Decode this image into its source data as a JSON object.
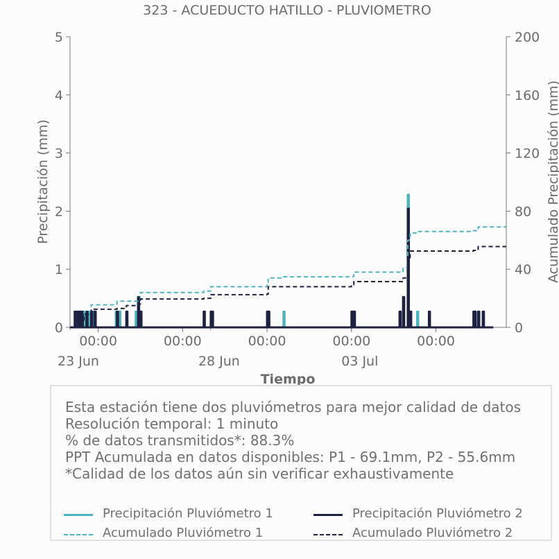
{
  "chart_data": {
    "type": "line",
    "title": "323 - ACUEDUCTO HATILLO - PLUVIOMETRO",
    "xlabel": "Tiempo",
    "ylabel": "Precipitación (mm)",
    "y2label": "Acumulado Precipitación (mm)",
    "x_range": [
      "2024-06-22T00:00",
      "2024-07-07T12:00"
    ],
    "x_major_ticks": [
      {
        "t": "2024-06-23T00:00",
        "time": "00:00",
        "date": "23 Jun"
      },
      {
        "t": "2024-06-26T00:00",
        "time": "00:00",
        "date": ""
      },
      {
        "t": "2024-06-29T00:00",
        "time": "00:00",
        "date": ""
      },
      {
        "t": "2024-07-02T00:00",
        "time": "00:00",
        "date": ""
      },
      {
        "t": "2024-07-05T00:00",
        "time": "00:00",
        "date": ""
      }
    ],
    "x_date_labels": [
      {
        "t": "2024-06-22T00:00",
        "label": "23 Jun"
      },
      {
        "t": "2024-06-27T00:00",
        "label": "28 Jun"
      },
      {
        "t": "2024-07-02T00:00",
        "label": "03 Jul"
      }
    ],
    "x_minor_ticks": [
      "2024-06-22T00:00",
      "2024-06-27T00:00",
      "2024-07-02T00:00"
    ],
    "ylim": [
      0,
      5
    ],
    "yticks": [
      0,
      1,
      2,
      3,
      4,
      5
    ],
    "y2lim": [
      0,
      200
    ],
    "y2ticks": [
      0,
      40,
      80,
      120,
      160,
      200
    ],
    "grid": false,
    "series": [
      {
        "name": "Precipitación Pluviómetro 1",
        "color": "#4fb3bf",
        "style": "solid",
        "axis": "left",
        "points": [
          [
            "2024-06-22T00:00",
            0
          ],
          [
            "2024-06-22T04:00",
            0.27
          ],
          [
            "2024-06-22T06:00",
            0.27
          ],
          [
            "2024-06-22T08:00",
            0.27
          ],
          [
            "2024-06-22T10:00",
            0.27
          ],
          [
            "2024-06-22T12:00",
            0.27
          ],
          [
            "2024-06-22T16:00",
            0.27
          ],
          [
            "2024-06-22T20:00",
            0.27
          ],
          [
            "2024-06-22T21:00",
            0.27
          ],
          [
            "2024-06-23T00:00",
            0
          ],
          [
            "2024-06-23T15:00",
            0.27
          ],
          [
            "2024-06-23T16:00",
            0.27
          ],
          [
            "2024-06-23T18:00",
            0.27
          ],
          [
            "2024-06-24T00:00",
            0.27
          ],
          [
            "2024-06-24T08:00",
            0.27
          ],
          [
            "2024-06-24T10:00",
            0.52
          ],
          [
            "2024-06-24T11:00",
            0.27
          ],
          [
            "2024-06-24T12:00",
            0.27
          ],
          [
            "2024-06-24T14:00",
            0
          ],
          [
            "2024-06-26T18:00",
            0.27
          ],
          [
            "2024-06-27T00:00",
            0.27
          ],
          [
            "2024-06-27T01:00",
            0.27
          ],
          [
            "2024-06-29T00:00",
            0.27
          ],
          [
            "2024-06-29T01:00",
            0.27
          ],
          [
            "2024-06-29T14:00",
            0.27
          ],
          [
            "2024-07-02T00:00",
            0.27
          ],
          [
            "2024-07-02T01:00",
            0.27
          ],
          [
            "2024-07-02T02:00",
            0.27
          ],
          [
            "2024-07-03T17:00",
            0.27
          ],
          [
            "2024-07-03T20:00",
            0.52
          ],
          [
            "2024-07-04T00:00",
            2.28
          ],
          [
            "2024-07-04T01:00",
            0.27
          ],
          [
            "2024-07-04T02:00",
            0.27
          ],
          [
            "2024-07-04T08:00",
            0.27
          ],
          [
            "2024-07-06T08:00",
            0.27
          ],
          [
            "2024-07-06T09:00",
            0.27
          ],
          [
            "2024-07-06T12:00",
            0.27
          ],
          [
            "2024-07-06T16:00",
            0.27
          ],
          [
            "2024-07-07T00:00",
            0
          ]
        ]
      },
      {
        "name": "Precipitación Pluviómetro 2",
        "color": "#1e2140",
        "style": "solid",
        "axis": "left",
        "points": [
          [
            "2024-06-22T00:00",
            0
          ],
          [
            "2024-06-22T04:00",
            0.27
          ],
          [
            "2024-06-22T06:00",
            0.27
          ],
          [
            "2024-06-22T08:00",
            0.27
          ],
          [
            "2024-06-22T10:00",
            0.27
          ],
          [
            "2024-06-22T14:00",
            0.27
          ],
          [
            "2024-06-22T18:00",
            0.27
          ],
          [
            "2024-06-22T21:00",
            0.27
          ],
          [
            "2024-06-23T00:00",
            0
          ],
          [
            "2024-06-23T16:00",
            0.27
          ],
          [
            "2024-06-24T00:00",
            0.27
          ],
          [
            "2024-06-24T10:00",
            0.52
          ],
          [
            "2024-06-24T11:00",
            0.27
          ],
          [
            "2024-06-24T12:00",
            0.27
          ],
          [
            "2024-06-24T14:00",
            0
          ],
          [
            "2024-06-26T18:00",
            0.27
          ],
          [
            "2024-06-27T00:00",
            0.27
          ],
          [
            "2024-06-27T01:00",
            0.27
          ],
          [
            "2024-06-29T00:00",
            0.27
          ],
          [
            "2024-06-29T01:00",
            0.27
          ],
          [
            "2024-07-02T00:00",
            0.27
          ],
          [
            "2024-07-02T01:00",
            0.27
          ],
          [
            "2024-07-02T02:00",
            0.27
          ],
          [
            "2024-07-03T17:00",
            0.27
          ],
          [
            "2024-07-03T20:00",
            0.52
          ],
          [
            "2024-07-04T00:00",
            2.04
          ],
          [
            "2024-07-04T01:00",
            0.27
          ],
          [
            "2024-07-04T02:00",
            0.27
          ],
          [
            "2024-07-04T18:00",
            0.27
          ],
          [
            "2024-07-06T08:00",
            0.27
          ],
          [
            "2024-07-06T09:00",
            0.27
          ],
          [
            "2024-07-06T12:00",
            0.27
          ],
          [
            "2024-07-06T16:00",
            0.27
          ],
          [
            "2024-07-07T00:00",
            0
          ]
        ]
      },
      {
        "name": "Acumulado Pluviómetro 1",
        "color": "#4fb3bf",
        "style": "dashed",
        "axis": "right",
        "points": [
          [
            "2024-06-22T00:00",
            0
          ],
          [
            "2024-06-22T06:00",
            5.0
          ],
          [
            "2024-06-22T12:00",
            11.0
          ],
          [
            "2024-06-22T18:00",
            15.5
          ],
          [
            "2024-06-23T15:00",
            16.0
          ],
          [
            "2024-06-23T16:00",
            18.0
          ],
          [
            "2024-06-24T10:00",
            19.0
          ],
          [
            "2024-06-24T12:00",
            24.0
          ],
          [
            "2024-06-26T18:00",
            25.0
          ],
          [
            "2024-06-27T00:00",
            28.0
          ],
          [
            "2024-06-29T00:00",
            29.0
          ],
          [
            "2024-06-29T01:00",
            34.0
          ],
          [
            "2024-06-29T14:00",
            34.8
          ],
          [
            "2024-07-02T00:00",
            35.0
          ],
          [
            "2024-07-02T02:00",
            38.0
          ],
          [
            "2024-07-03T20:00",
            41.0
          ],
          [
            "2024-07-04T00:00",
            60.0
          ],
          [
            "2024-07-04T02:00",
            65.0
          ],
          [
            "2024-07-04T08:00",
            66.0
          ],
          [
            "2024-07-06T08:00",
            66.5
          ],
          [
            "2024-07-06T12:00",
            69.1
          ],
          [
            "2024-07-07T12:00",
            69.1
          ]
        ]
      },
      {
        "name": "Acumulado Pluviómetro 2",
        "color": "#1e2140",
        "style": "dashed",
        "axis": "right",
        "points": [
          [
            "2024-06-22T00:00",
            0
          ],
          [
            "2024-06-22T06:00",
            5.0
          ],
          [
            "2024-06-22T12:00",
            9.0
          ],
          [
            "2024-06-22T18:00",
            12.5
          ],
          [
            "2024-06-23T16:00",
            13.0
          ],
          [
            "2024-06-24T00:00",
            15.0
          ],
          [
            "2024-06-24T10:00",
            16.0
          ],
          [
            "2024-06-24T12:00",
            19.5
          ],
          [
            "2024-06-26T18:00",
            20.0
          ],
          [
            "2024-06-27T00:00",
            22.5
          ],
          [
            "2024-06-29T00:00",
            23.0
          ],
          [
            "2024-06-29T01:00",
            28.0
          ],
          [
            "2024-07-02T00:00",
            28.5
          ],
          [
            "2024-07-02T02:00",
            31.5
          ],
          [
            "2024-07-03T20:00",
            34.0
          ],
          [
            "2024-07-04T00:00",
            48.0
          ],
          [
            "2024-07-04T02:00",
            52.5
          ],
          [
            "2024-07-06T08:00",
            53.0
          ],
          [
            "2024-07-06T12:00",
            55.6
          ],
          [
            "2024-07-07T12:00",
            55.6
          ]
        ]
      }
    ]
  },
  "notes": [
    "Esta estación tiene dos pluviómetros para mejor calidad de datos",
    "Resolución temporal: 1 minuto",
    "% de datos transmitidos*: 88.3%",
    "PPT Acumulada en datos disponibles: P1 - 69.1mm, P2 - 55.6mm",
    "*Calidad de los datos aún sin verificar exhaustivamente"
  ],
  "legend": [
    {
      "label": "Precipitación Pluviómetro 1",
      "color": "#4fb3bf",
      "style": "solid"
    },
    {
      "label": "Precipitación Pluviómetro 2",
      "color": "#1e2140",
      "style": "solid"
    },
    {
      "label": "Acumulado Pluviómetro 1",
      "color": "#4fb3bf",
      "style": "dashed"
    },
    {
      "label": "Acumulado Pluviómetro 2",
      "color": "#1e2140",
      "style": "dashed"
    }
  ]
}
